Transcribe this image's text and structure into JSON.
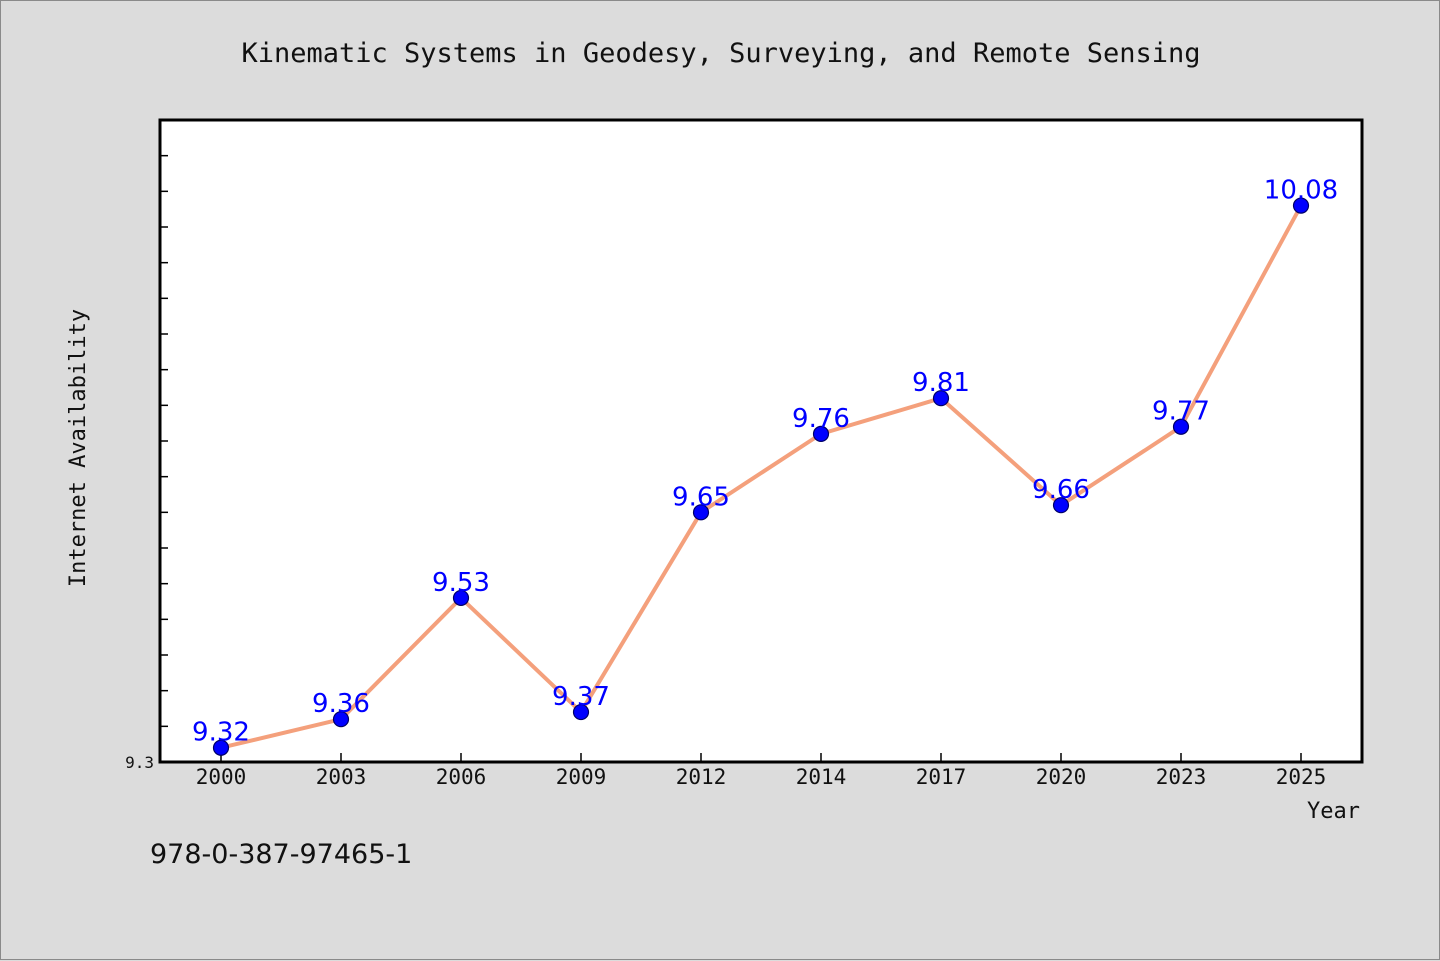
{
  "chart_data": {
    "type": "line",
    "title": "Kinematic Systems in Geodesy, Surveying, and Remote Sensing",
    "xlabel": "Year",
    "ylabel": "Internet Availability",
    "categories": [
      "2000",
      "2003",
      "2006",
      "2009",
      "2012",
      "2014",
      "2017",
      "2020",
      "2023",
      "2025"
    ],
    "series": [
      {
        "values": [
          9.32,
          9.36,
          9.53,
          9.37,
          9.65,
          9.76,
          9.81,
          9.66,
          9.77,
          10.08
        ]
      }
    ],
    "ylim": [
      9.3,
      10.2
    ],
    "yticks_labeled": [
      "9.3"
    ],
    "grid": false,
    "legend": "none",
    "data_labels": true
  },
  "footnote": "978-0-387-97465-1",
  "colors": {
    "background": "#dcdcdc",
    "plot_area": "#ffffff",
    "line": "#f4a07c",
    "marker_fill": "#0000ff",
    "marker_edge": "#000066",
    "data_label": "#0000ff"
  }
}
